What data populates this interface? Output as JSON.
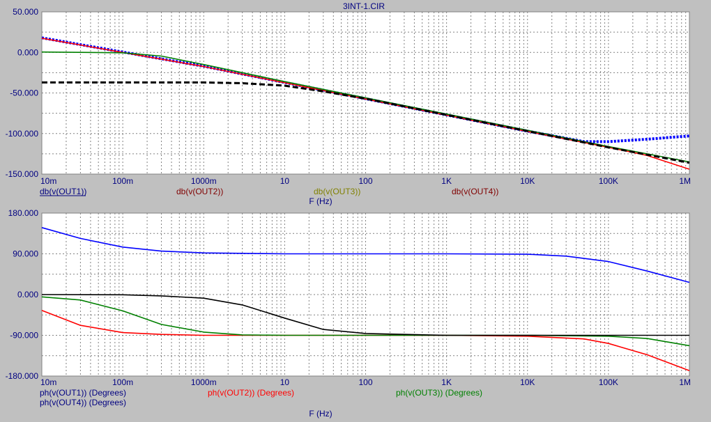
{
  "title": "3INT-1.CIR",
  "colors": {
    "background": "#c0c0c0",
    "plot_area": "#ffffff",
    "grid": "#808080",
    "text": "#000080",
    "blue": "#0000ff",
    "red": "#ff0000",
    "green": "#008000",
    "black": "#000000",
    "out2_label": "#800000",
    "out3_label": "#808000",
    "out4_label": "#800000"
  },
  "chart_data": [
    {
      "type": "line",
      "scale": {
        "x": "log",
        "y": "linear"
      },
      "xlim": [
        0.01,
        1000000
      ],
      "ylim": [
        -150,
        50
      ],
      "grid": true,
      "x_ticks": [
        {
          "value": 0.01,
          "label": "10m"
        },
        {
          "value": 0.1,
          "label": "100m"
        },
        {
          "value": 1,
          "label": "1000m"
        },
        {
          "value": 10,
          "label": "10"
        },
        {
          "value": 100,
          "label": "100"
        },
        {
          "value": 1000,
          "label": "1K"
        },
        {
          "value": 10000,
          "label": "10K"
        },
        {
          "value": 100000,
          "label": "100K"
        },
        {
          "value": 1000000,
          "label": "1M"
        }
      ],
      "y_ticks": [
        {
          "value": 50,
          "label": "50.000"
        },
        {
          "value": 0,
          "label": "0.000"
        },
        {
          "value": -50,
          "label": "-50.000"
        },
        {
          "value": -100,
          "label": "-100.000"
        },
        {
          "value": -150,
          "label": "-150.000"
        }
      ],
      "xlabel": "F (Hz)",
      "series": [
        {
          "name": "db(v(OUT1))",
          "color": "#0000ff",
          "style": "dotted-thick",
          "x": [
            0.01,
            0.1,
            1,
            10,
            100,
            1000,
            10000,
            50000,
            100000,
            300000,
            1000000
          ],
          "y": [
            18,
            0.5,
            -17,
            -37,
            -57,
            -77,
            -97,
            -110,
            -110,
            -107,
            -103
          ]
        },
        {
          "name": "db(v(OUT2))",
          "color": "#ff0000",
          "style": "solid",
          "x": [
            0.01,
            0.1,
            1,
            10,
            100,
            1000,
            10000,
            100000,
            300000,
            1000000
          ],
          "y": [
            17.5,
            0,
            -17.5,
            -37.5,
            -57.5,
            -77.5,
            -97.5,
            -117,
            -127,
            -144
          ]
        },
        {
          "name": "db(v(OUT3))",
          "color": "#008000",
          "style": "solid",
          "x": [
            0.01,
            0.1,
            0.3,
            1,
            10,
            100,
            1000,
            10000,
            100000,
            1000000
          ],
          "y": [
            0.5,
            -0.5,
            -4.5,
            -15,
            -36,
            -56,
            -76,
            -96,
            -116,
            -135
          ]
        },
        {
          "name": "db(v(OUT4))",
          "color": "#000000",
          "style": "dashed",
          "x": [
            0.01,
            1,
            3,
            10,
            30,
            100,
            1000,
            10000,
            100000,
            1000000
          ],
          "y": [
            -37,
            -37,
            -38,
            -41,
            -48,
            -57,
            -77,
            -97,
            -117,
            -136
          ]
        }
      ]
    },
    {
      "type": "line",
      "scale": {
        "x": "log",
        "y": "linear"
      },
      "xlim": [
        0.01,
        1000000
      ],
      "ylim": [
        -180,
        180
      ],
      "grid": true,
      "x_ticks": [
        {
          "value": 0.01,
          "label": "10m"
        },
        {
          "value": 0.1,
          "label": "100m"
        },
        {
          "value": 1,
          "label": "1000m"
        },
        {
          "value": 10,
          "label": "10"
        },
        {
          "value": 100,
          "label": "100"
        },
        {
          "value": 1000,
          "label": "1K"
        },
        {
          "value": 10000,
          "label": "10K"
        },
        {
          "value": 100000,
          "label": "100K"
        },
        {
          "value": 1000000,
          "label": "1M"
        }
      ],
      "y_ticks": [
        {
          "value": 180,
          "label": "180.000"
        },
        {
          "value": 90,
          "label": "90.000"
        },
        {
          "value": 0,
          "label": "0.000"
        },
        {
          "value": -90,
          "label": "-90.000"
        },
        {
          "value": -180,
          "label": "-180.000"
        }
      ],
      "xlabel": "F (Hz)",
      "series": [
        {
          "name": "ph(v(OUT1)) (Degrees)",
          "color": "#0000ff",
          "style": "solid",
          "x": [
            0.01,
            0.03,
            0.1,
            0.3,
            1,
            10,
            1000,
            10000,
            30000,
            100000,
            300000,
            1000000
          ],
          "y": [
            148,
            124,
            105,
            96,
            92,
            90,
            90,
            89,
            85,
            73,
            52,
            27
          ]
        },
        {
          "name": "ph(v(OUT2)) (Degrees)",
          "color": "#ff0000",
          "style": "solid",
          "x": [
            0.01,
            0.03,
            0.1,
            0.3,
            1,
            3,
            10,
            1000,
            10000,
            50000,
            100000,
            300000,
            1000000
          ],
          "y": [
            -35,
            -68,
            -84,
            -88,
            -90,
            -90,
            -90,
            -90,
            -92,
            -98,
            -108,
            -133,
            -168
          ]
        },
        {
          "name": "ph(v(OUT3)) (Degrees)",
          "color": "#008000",
          "style": "solid",
          "x": [
            0.01,
            0.03,
            0.1,
            0.3,
            1,
            3,
            10,
            1000,
            10000,
            100000,
            300000,
            1000000
          ],
          "y": [
            -5,
            -12,
            -36,
            -66,
            -83,
            -89,
            -90,
            -90,
            -90,
            -92,
            -97,
            -113
          ]
        },
        {
          "name": "ph(v(OUT4)) (Degrees)",
          "color": "#000000",
          "style": "solid",
          "x": [
            0.01,
            0.1,
            0.3,
            1,
            3,
            10,
            30,
            100,
            1000,
            10000,
            100000,
            1000000
          ],
          "y": [
            0,
            -0.5,
            -3,
            -8,
            -23,
            -52,
            -77,
            -86,
            -90,
            -90,
            -90,
            -90
          ]
        }
      ]
    }
  ]
}
